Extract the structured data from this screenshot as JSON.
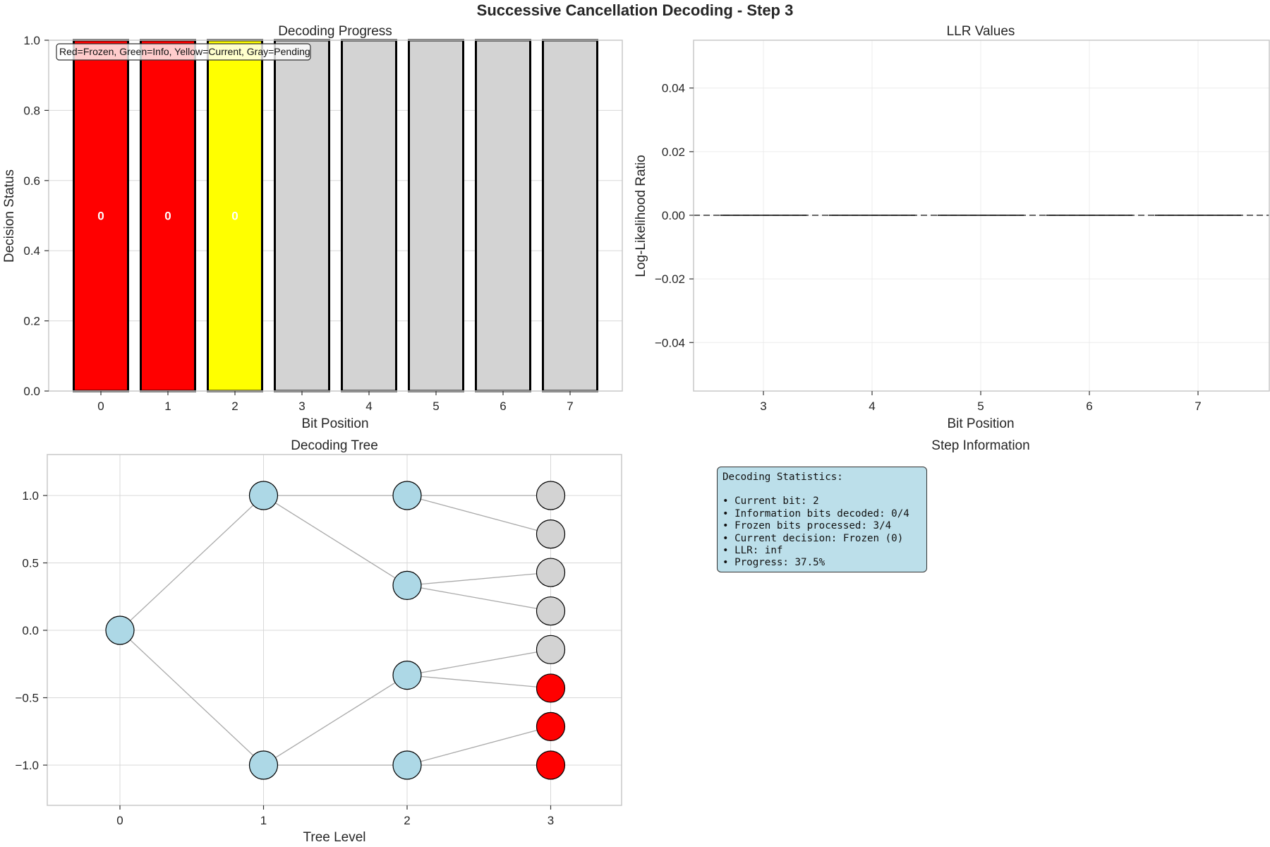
{
  "page": {
    "suptitle": "Successive Cancellation Decoding - Step 3"
  },
  "colors": {
    "frozen": "#ff0000",
    "info": "#00a000",
    "current": "#ffff00",
    "pending": "#d3d3d3",
    "node": "#add8e6",
    "info_box_bg": "#bcdfea"
  },
  "chart_data": [
    {
      "type": "bar",
      "title": "Decoding Progress",
      "xlabel": "Bit Position",
      "ylabel": "Decision Status",
      "categories": [
        "0",
        "1",
        "2",
        "3",
        "4",
        "5",
        "6",
        "7"
      ],
      "values": [
        1,
        1,
        1,
        1,
        1,
        1,
        1,
        1
      ],
      "bar_status": [
        "frozen",
        "frozen",
        "current",
        "pending",
        "pending",
        "pending",
        "pending",
        "pending"
      ],
      "bar_labels": [
        "0",
        "0",
        "0",
        "",
        "",
        "",
        "",
        ""
      ],
      "yticks": [
        "0.0",
        "0.2",
        "0.4",
        "0.6",
        "0.8",
        "1.0"
      ],
      "ylim": [
        0,
        1
      ],
      "legend_text": "Red=Frozen, Green=Info, Yellow=Current, Gray=Pending",
      "grid": true
    },
    {
      "type": "bar",
      "title": "LLR Values",
      "xlabel": "Bit Position",
      "ylabel": "Log-Likelihood Ratio",
      "categories": [
        "3",
        "4",
        "5",
        "6",
        "7"
      ],
      "values": [
        0,
        0,
        0,
        0,
        0
      ],
      "yticks": [
        "0.04",
        "0.02",
        "0.00",
        "−0.02",
        "−0.04"
      ],
      "ylim": [
        -0.055,
        0.055
      ],
      "reference_line": 0,
      "grid": true
    },
    {
      "type": "scatter",
      "title": "Decoding Tree",
      "xlabel": "Tree Level",
      "ylabel": "",
      "xticks": [
        "0",
        "1",
        "2",
        "3"
      ],
      "yticks": [
        "1.0",
        "0.5",
        "0.0",
        "−0.5",
        "−1.0"
      ],
      "xlim": [
        -0.5,
        3.5
      ],
      "ylim": [
        -1.3,
        1.3
      ],
      "nodes": [
        {
          "x": 0,
          "y": 0,
          "status": "node"
        },
        {
          "x": 1,
          "y": 1,
          "status": "node"
        },
        {
          "x": 1,
          "y": -1,
          "status": "node"
        },
        {
          "x": 2,
          "y": 1,
          "status": "node"
        },
        {
          "x": 2,
          "y": 0.333,
          "status": "node"
        },
        {
          "x": 2,
          "y": -0.333,
          "status": "node"
        },
        {
          "x": 2,
          "y": -1,
          "status": "node"
        },
        {
          "x": 3,
          "y": 1,
          "status": "pending"
        },
        {
          "x": 3,
          "y": 0.714,
          "status": "pending"
        },
        {
          "x": 3,
          "y": 0.429,
          "status": "pending"
        },
        {
          "x": 3,
          "y": 0.143,
          "status": "pending"
        },
        {
          "x": 3,
          "y": -0.143,
          "status": "pending"
        },
        {
          "x": 3,
          "y": -0.429,
          "status": "frozen"
        },
        {
          "x": 3,
          "y": -0.714,
          "status": "frozen"
        },
        {
          "x": 3,
          "y": -1,
          "status": "frozen"
        }
      ],
      "edges": [
        [
          0,
          1
        ],
        [
          0,
          2
        ],
        [
          1,
          3
        ],
        [
          1,
          4
        ],
        [
          2,
          5
        ],
        [
          2,
          6
        ],
        [
          3,
          7
        ],
        [
          3,
          8
        ],
        [
          4,
          9
        ],
        [
          4,
          10
        ],
        [
          5,
          11
        ],
        [
          5,
          12
        ],
        [
          6,
          13
        ],
        [
          6,
          14
        ]
      ],
      "grid": true
    }
  ],
  "step_info": {
    "title": "Step Information",
    "box_title": "Decoding Statistics:",
    "lines": [
      "• Current bit: 2",
      "• Information bits decoded: 0/4",
      "• Frozen bits processed: 3/4",
      "• Current decision: Frozen (0)",
      "• LLR: inf",
      "• Progress: 37.5%"
    ]
  }
}
